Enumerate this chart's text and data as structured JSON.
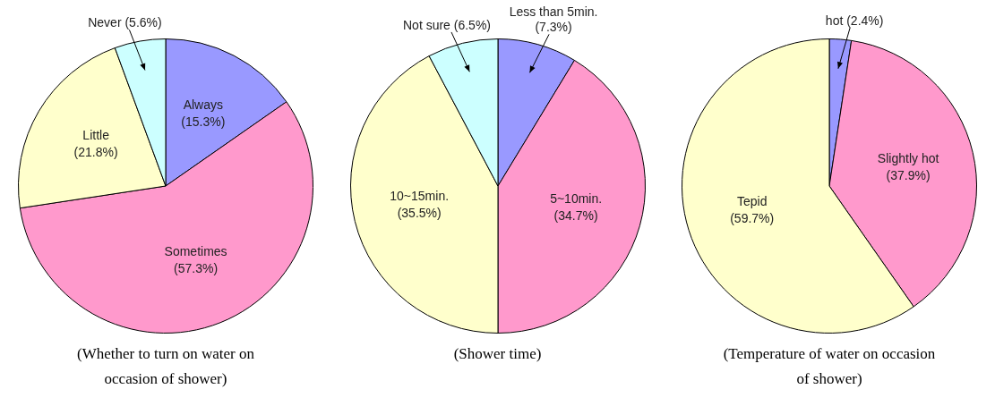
{
  "chart_data": [
    {
      "type": "pie",
      "title": "(Whether to turn on water on occasion of shower)",
      "categories": [
        "Always",
        "Sometimes",
        "Little",
        "Never"
      ],
      "values": [
        15.3,
        57.3,
        21.8,
        5.6
      ],
      "value_labels": [
        "(15.3%)",
        "(57.3%)",
        "(21.8%)",
        "(5.6%)"
      ],
      "colors": [
        "#9999ff",
        "#ff99cc",
        "#ffffcc",
        "#ccffff"
      ]
    },
    {
      "type": "pie",
      "title": "(Shower time)",
      "categories": [
        "Less than 5min.",
        "5~10min.",
        "10~15min.",
        "Not sure"
      ],
      "values": [
        7.3,
        34.7,
        35.5,
        6.5
      ],
      "value_labels": [
        "(7.3%)",
        "(34.7%)",
        "(35.5%)",
        "(6.5%)"
      ],
      "colors": [
        "#9999ff",
        "#ff99cc",
        "#ffffcc",
        "#ccffff"
      ]
    },
    {
      "type": "pie",
      "title": "(Temperature of water on occasion of shower)",
      "categories": [
        "hot",
        "Slightly hot",
        "Tepid"
      ],
      "values": [
        2.4,
        37.9,
        59.7
      ],
      "value_labels": [
        "(2.4%)",
        "(37.9%)",
        "(59.7%)"
      ],
      "colors": [
        "#9999ff",
        "#ff99cc",
        "#ffffcc"
      ]
    }
  ]
}
